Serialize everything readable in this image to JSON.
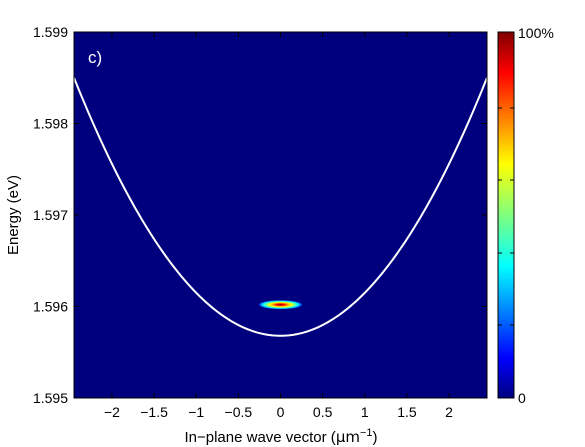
{
  "chart_data": {
    "type": "heatmap",
    "panel_label": "c)",
    "xlabel": "In−plane wave vector (",
    "xlabel_unit": "μm",
    "xlabel_unit_exp": "−1",
    "xlabel_close": ")",
    "ylabel": "Energy (eV)",
    "xlim": [
      -2.45,
      2.45
    ],
    "ylim": [
      1.595,
      1.599
    ],
    "x_ticks": [
      -2,
      -1.5,
      -1,
      -0.5,
      0,
      0.5,
      1,
      1.5,
      2
    ],
    "x_tick_labels": [
      "−2",
      "−1.5",
      "−1",
      "−0.5",
      "0",
      "0.5",
      "1",
      "1.5",
      "2"
    ],
    "y_ticks": [
      1.595,
      1.596,
      1.597,
      1.598,
      1.599
    ],
    "y_tick_labels": [
      "1.595",
      "1.596",
      "1.597",
      "1.598",
      "1.599"
    ],
    "background_color": "#00007f",
    "dispersion_curve": {
      "color": "#ffffff",
      "shape": "parabola",
      "x": [
        -2.45,
        -2.0,
        -1.5,
        -1.0,
        -0.5,
        0.0,
        0.5,
        1.0,
        1.5,
        2.0,
        2.45
      ],
      "y": [
        1.5985,
        1.5978,
        1.5971,
        1.5965,
        1.596,
        1.59568,
        1.596,
        1.5965,
        1.5971,
        1.5978,
        1.5985
      ]
    },
    "emission_spot": {
      "center_x": 0.0,
      "center_y": 1.59602,
      "sigma_x": 0.2,
      "sigma_y": 3e-05,
      "peak": 100
    },
    "colorbar": {
      "min_label": "0",
      "max_label": "100%",
      "colormap": "jet",
      "range": [
        0,
        100
      ]
    }
  }
}
